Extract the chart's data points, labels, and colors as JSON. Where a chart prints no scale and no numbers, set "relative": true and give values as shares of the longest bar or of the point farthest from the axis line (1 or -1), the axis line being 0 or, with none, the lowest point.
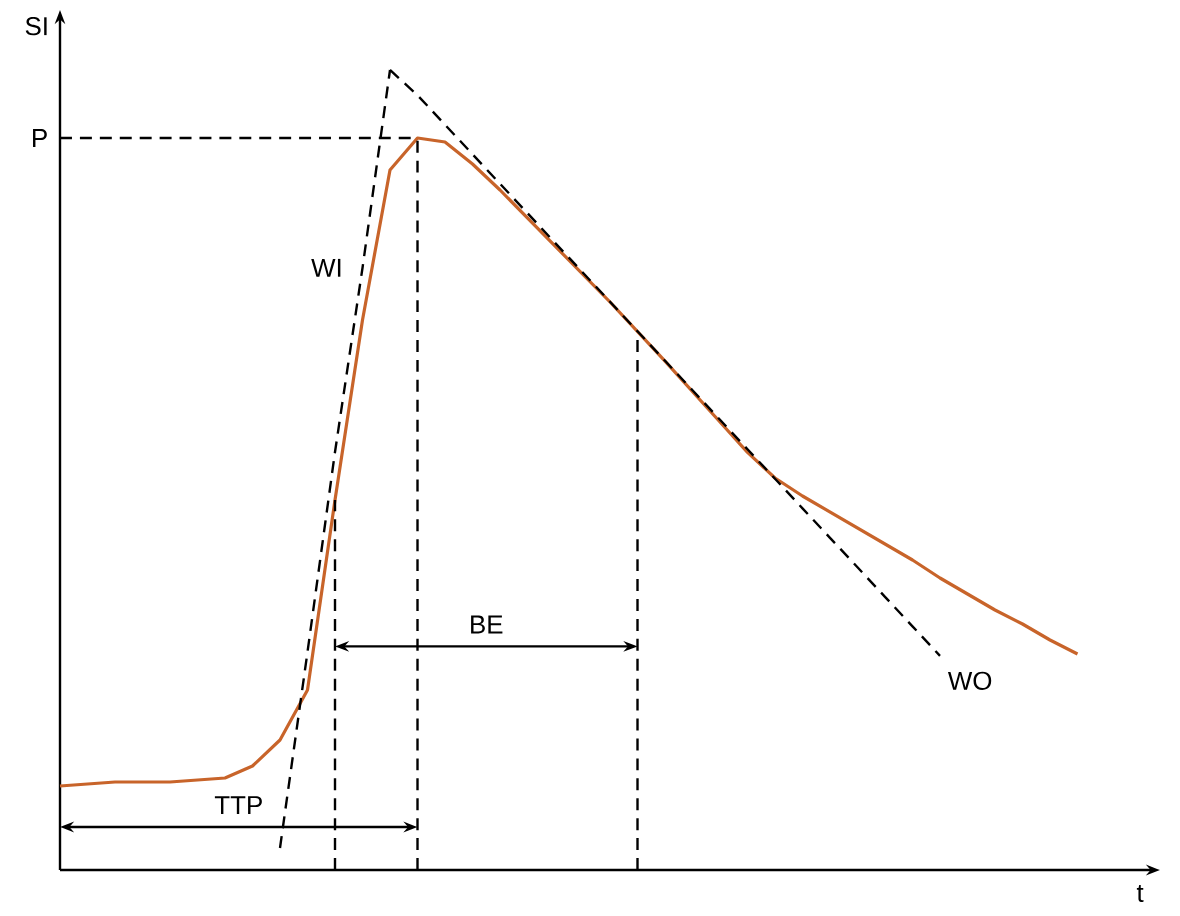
{
  "chart_data": {
    "type": "line",
    "relative": true,
    "xlabel": "t",
    "ylabel": "SI",
    "marker": "none",
    "categories": [
      null,
      null,
      null,
      null,
      null,
      null,
      null,
      null,
      null,
      null,
      null,
      null,
      null,
      null,
      null,
      null,
      null,
      null,
      null,
      null,
      null,
      null,
      null,
      null,
      null,
      null,
      null,
      null,
      null,
      null,
      null,
      null,
      null,
      null,
      null,
      null,
      null,
      null,
      null,
      null,
      null
    ],
    "series": [
      {
        "color": "#c8642a",
        "line_style": "solid",
        "values": [
          0.105,
          0.1075,
          0.11,
          0.11,
          0.11,
          0.1125,
          0.115,
          0.13,
          0.1625,
          0.225,
          0.4625,
          0.6875,
          0.875,
          0.915,
          0.91,
          0.8825,
          0.85,
          0.815,
          0.78,
          0.745,
          0.71,
          0.673,
          0.636,
          0.598,
          0.56,
          0.522,
          0.49,
          0.4675,
          0.4475,
          0.4275,
          0.4075,
          0.3875,
          0.365,
          0.345,
          0.325,
          0.3075,
          0.2875,
          0.27,
          null,
          null,
          null
        ]
      },
      {
        "name": "WI",
        "color": "#000000",
        "line_style": "dashed",
        "values": [
          null,
          null,
          null,
          null,
          null,
          null,
          null,
          null,
          0.0275,
          0.2725,
          0.5225,
          0.7525,
          1.0,
          null,
          null,
          null,
          null,
          null,
          null,
          null,
          null,
          null,
          null,
          null,
          null,
          null,
          null,
          null,
          null,
          null,
          null,
          null,
          null,
          null,
          null,
          null,
          null,
          null,
          null,
          null,
          null
        ]
      },
      {
        "name": "WO",
        "color": "#000000",
        "line_style": "dashed",
        "values": [
          null,
          null,
          null,
          null,
          null,
          null,
          null,
          null,
          null,
          null,
          null,
          null,
          1.0,
          0.9685,
          0.9316,
          0.8947,
          0.8578,
          0.821,
          0.784,
          0.7472,
          0.7103,
          0.6734,
          0.6365,
          0.5997,
          0.5628,
          0.5259,
          0.489,
          0.4521,
          0.4152,
          0.3784,
          0.3414,
          0.3046,
          0.2677,
          null,
          null,
          null,
          null,
          null,
          null,
          null,
          null
        ]
      },
      {
        "name": "P",
        "color": "#000000",
        "line_style": "dashed",
        "values": [
          0.915,
          0.915,
          0.915,
          0.915,
          0.915,
          0.915,
          0.915,
          0.915,
          0.915,
          0.915,
          0.915,
          0.915,
          0.915,
          0.915,
          null,
          null,
          null,
          null,
          null,
          null,
          null,
          null,
          null,
          null,
          null,
          null,
          null,
          null,
          null,
          null,
          null,
          null,
          null,
          null,
          null,
          null,
          null,
          null,
          null,
          null,
          null
        ]
      }
    ],
    "annotations": [
      "BE",
      "TTP"
    ]
  }
}
